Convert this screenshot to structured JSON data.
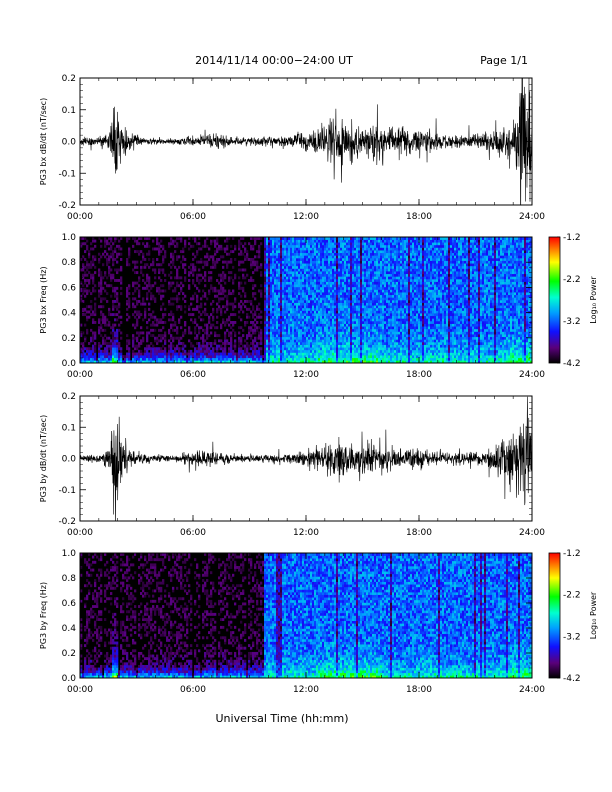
{
  "header": {
    "title": "2014/11/14  00:00−24:00 UT",
    "page": "Page 1/1"
  },
  "footer": {
    "xlabel": "Universal Time (hh:mm)"
  },
  "chart_data": [
    {
      "type": "line",
      "ylabel": "PG3 bx dB/dt (nT/sec)",
      "xlim": [
        0,
        24
      ],
      "ylim": [
        -0.2,
        0.2
      ],
      "xticks": [
        "00:00",
        "06:00",
        "12:00",
        "18:00",
        "24:00"
      ],
      "yticks": [
        "-0.2",
        "-0.1",
        "0.0",
        "0.1",
        "0.2"
      ],
      "envelope": {
        "hours": [
          0,
          1,
          1.6,
          1.85,
          2.1,
          2.6,
          3.5,
          5,
          6.5,
          7.5,
          8.5,
          9.5,
          10.5,
          11.5,
          12.2,
          13,
          13.7,
          14.3,
          15,
          15.8,
          16.5,
          17.3,
          18,
          18.7,
          19.5,
          20.5,
          21.3,
          22,
          22.6,
          23.1,
          23.5,
          23.8,
          24
        ],
        "amplitude": [
          0.012,
          0.015,
          0.04,
          0.2,
          0.09,
          0.03,
          0.012,
          0.01,
          0.025,
          0.025,
          0.012,
          0.015,
          0.018,
          0.022,
          0.035,
          0.06,
          0.09,
          0.07,
          0.05,
          0.07,
          0.05,
          0.04,
          0.05,
          0.03,
          0.025,
          0.022,
          0.03,
          0.04,
          0.05,
          0.09,
          0.2,
          0.2,
          0.2
        ]
      }
    },
    {
      "type": "heatmap",
      "ylabel": "PG3 bx Freq (Hz)",
      "xlim": [
        0,
        24
      ],
      "ylim": [
        0,
        1.0
      ],
      "xticks": [
        "00:00",
        "06:00",
        "12:00",
        "18:00",
        "24:00"
      ],
      "yticks": [
        "0.0",
        "0.2",
        "0.4",
        "0.6",
        "0.8",
        "1.0"
      ],
      "colorbar": {
        "label": "Log₁₀ Power",
        "range": [
          -4.2,
          -1.2
        ],
        "ticks": [
          "-1.2",
          "-2.2",
          "-3.2",
          "-4.2"
        ]
      },
      "quiet_until_hour": 9.8
    },
    {
      "type": "line",
      "ylabel": "PG3 by dB/dt (nT/sec)",
      "xlim": [
        0,
        24
      ],
      "ylim": [
        -0.2,
        0.2
      ],
      "xticks": [
        "00:00",
        "06:00",
        "12:00",
        "18:00",
        "24:00"
      ],
      "yticks": [
        "-0.2",
        "-0.1",
        "0.0",
        "0.1",
        "0.2"
      ],
      "envelope": {
        "hours": [
          0,
          1,
          1.6,
          1.9,
          2.2,
          2.7,
          3.5,
          5,
          6.5,
          7.5,
          8.5,
          9.5,
          10.5,
          11.5,
          12.2,
          13,
          13.7,
          14.3,
          15,
          15.8,
          16.5,
          17.3,
          18,
          18.7,
          19.5,
          20.5,
          21.3,
          22,
          22.6,
          23.1,
          23.5,
          23.8,
          24
        ],
        "amplitude": [
          0.012,
          0.015,
          0.04,
          0.2,
          0.08,
          0.03,
          0.012,
          0.01,
          0.03,
          0.02,
          0.012,
          0.015,
          0.018,
          0.02,
          0.03,
          0.05,
          0.07,
          0.06,
          0.05,
          0.04,
          0.035,
          0.04,
          0.035,
          0.025,
          0.02,
          0.02,
          0.025,
          0.05,
          0.08,
          0.1,
          0.2,
          0.2,
          0.15
        ]
      }
    },
    {
      "type": "heatmap",
      "ylabel": "PG3 by Freq (Hz)",
      "xlim": [
        0,
        24
      ],
      "ylim": [
        0,
        1.0
      ],
      "xticks": [
        "00:00",
        "06:00",
        "12:00",
        "18:00",
        "24:00"
      ],
      "yticks": [
        "0.0",
        "0.2",
        "0.4",
        "0.6",
        "0.8",
        "1.0"
      ],
      "colorbar": {
        "label": "Log₁₀ Power",
        "range": [
          -4.2,
          -1.2
        ],
        "ticks": [
          "-1.2",
          "-2.2",
          "-3.2",
          "-4.2"
        ]
      },
      "quiet_until_hour": 9.8
    }
  ]
}
